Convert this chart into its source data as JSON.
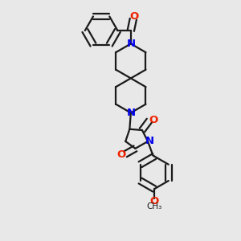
{
  "bg_color": "#e8e8e8",
  "bond_color": "#1a1a1a",
  "nitrogen_color": "#0000ee",
  "oxygen_color": "#ee2200",
  "bond_lw": 1.6,
  "dbl_off": 0.013,
  "figsize": [
    3.0,
    3.0
  ],
  "dpi": 100,
  "xlim": [
    0.0,
    1.0
  ],
  "ylim": [
    0.0,
    1.0
  ]
}
